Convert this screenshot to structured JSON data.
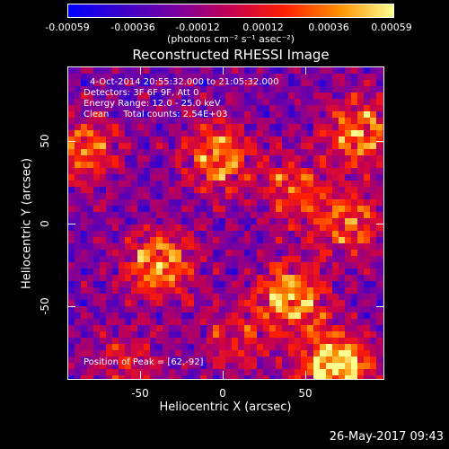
{
  "colorbar": {
    "ticks": [
      "-0.00059",
      "-0.00036",
      "-0.00012",
      "0.00012",
      "0.00036",
      "0.00059"
    ],
    "units": "(photons cm⁻² s⁻¹ asec⁻²)",
    "colors": [
      "#0000ff",
      "#3a00c8",
      "#7a00a0",
      "#c40050",
      "#ff2000",
      "#ff9000",
      "#ffff90"
    ]
  },
  "plot": {
    "title": "Reconstructed RHESSI Image",
    "info": {
      "line1": "4-Oct-2014 20:55:32.000 to 21:05:32.000",
      "line2": "Detectors: 3F 6F 9F, Att 0",
      "line3": "Energy Range: 12.0 - 25.0 keV",
      "line4": "Clean     Total counts: 2.54E+03",
      "peak": "Position of Peak = [62,-92]"
    },
    "xlabel": "Heliocentric X (arcsec)",
    "ylabel": "Heliocentric Y (arcsec)",
    "xticks": [
      "-50",
      "0",
      "50"
    ],
    "yticks": [
      "50",
      "0",
      "-50"
    ]
  },
  "chart_data": {
    "type": "heatmap",
    "title": "Reconstructed RHESSI Image",
    "xlabel": "Heliocentric X (arcsec)",
    "ylabel": "Heliocentric Y (arcsec)",
    "xlim": [
      -95,
      95
    ],
    "ylim": [
      -95,
      95
    ],
    "color_range": [
      -0.00059,
      0.00059
    ],
    "peak": [
      62,
      -92
    ],
    "hotspots": [
      {
        "x": 66,
        "y": -88,
        "level": 1.0
      },
      {
        "x": 40,
        "y": -45,
        "level": 0.75
      },
      {
        "x": -40,
        "y": -25,
        "level": 0.7
      },
      {
        "x": -5,
        "y": 40,
        "level": 0.65
      },
      {
        "x": 80,
        "y": 55,
        "level": 0.65
      },
      {
        "x": -85,
        "y": 45,
        "level": 0.55
      },
      {
        "x": 75,
        "y": 0,
        "level": 0.55
      },
      {
        "x": 40,
        "y": 20,
        "level": 0.45
      },
      {
        "x": 5,
        "y": -70,
        "level": 0.35
      },
      {
        "x": -60,
        "y": -85,
        "level": 0.3
      }
    ]
  },
  "footer": {
    "timestamp": "26-May-2017 09:43"
  }
}
